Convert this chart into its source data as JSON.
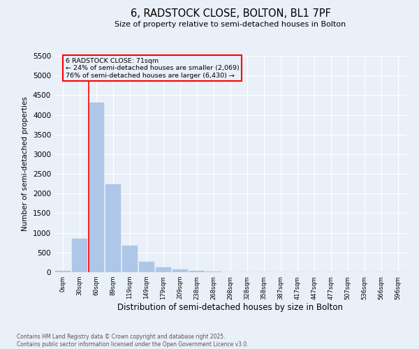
{
  "title": "6, RADSTOCK CLOSE, BOLTON, BL1 7PF",
  "subtitle": "Size of property relative to semi-detached houses in Bolton",
  "xlabel": "Distribution of semi-detached houses by size in Bolton",
  "ylabel": "Number of semi-detached properties",
  "bar_color": "#aec6e8",
  "bg_color": "#eaf0f8",
  "grid_color": "#ffffff",
  "bar_edge_color": "#aec6e8",
  "categories": [
    "0sqm",
    "30sqm",
    "60sqm",
    "89sqm",
    "119sqm",
    "149sqm",
    "179sqm",
    "209sqm",
    "238sqm",
    "268sqm",
    "298sqm",
    "328sqm",
    "358sqm",
    "387sqm",
    "417sqm",
    "447sqm",
    "477sqm",
    "507sqm",
    "536sqm",
    "566sqm",
    "596sqm"
  ],
  "values": [
    30,
    860,
    4310,
    2240,
    670,
    260,
    130,
    65,
    40,
    20,
    0,
    0,
    0,
    0,
    0,
    0,
    0,
    0,
    0,
    0,
    0
  ],
  "ylim": [
    0,
    5500
  ],
  "yticks": [
    0,
    500,
    1000,
    1500,
    2000,
    2500,
    3000,
    3500,
    4000,
    4500,
    5000,
    5500
  ],
  "property_label": "6 RADSTOCK CLOSE: 71sqm",
  "pct_smaller": 24,
  "pct_smaller_count": 2069,
  "pct_larger": 76,
  "pct_larger_count": 6430,
  "red_line_bin": 2,
  "footer_line1": "Contains HM Land Registry data © Crown copyright and database right 2025.",
  "footer_line2": "Contains public sector information licensed under the Open Government Licence v3.0."
}
